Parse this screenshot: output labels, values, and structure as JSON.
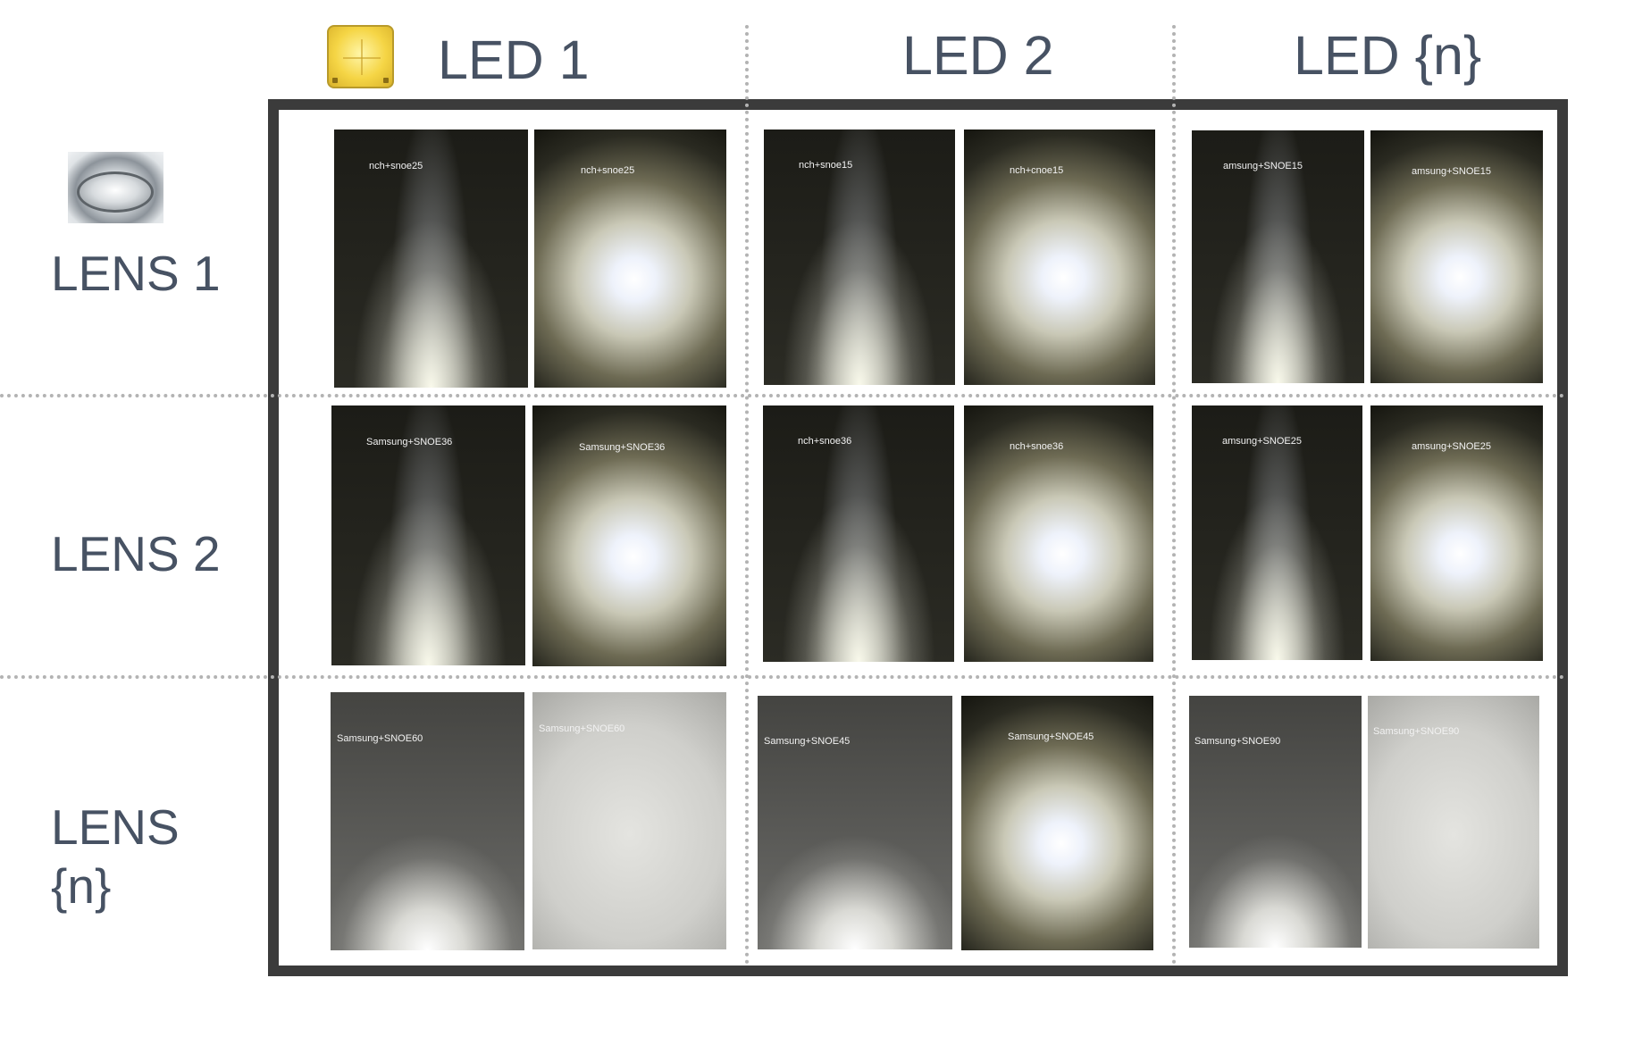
{
  "columns": [
    {
      "label": "LED 1",
      "icon": "led-chip-icon"
    },
    {
      "label": "LED 2"
    },
    {
      "label": "LED {n}"
    }
  ],
  "rows": [
    {
      "label": "LENS 1",
      "icon": "lens-icon"
    },
    {
      "label": "LENS 2"
    },
    {
      "label": "LENS {n}"
    }
  ],
  "cells": [
    [
      {
        "photos": [
          {
            "label": "nch+snoe25",
            "kind": "cone"
          },
          {
            "label": "nch+snoe25",
            "kind": "spot"
          }
        ]
      },
      {
        "photos": [
          {
            "label": "nch+snoe15",
            "kind": "cone"
          },
          {
            "label": "nch+cnoe15",
            "kind": "spot"
          }
        ]
      },
      {
        "photos": [
          {
            "label": "amsung+SNOE15",
            "kind": "cone"
          },
          {
            "label": "amsung+SNOE15",
            "kind": "spot"
          }
        ]
      }
    ],
    [
      {
        "photos": [
          {
            "label": "Samsung+SNOE36",
            "kind": "cone"
          },
          {
            "label": "Samsung+SNOE36",
            "kind": "spot"
          }
        ]
      },
      {
        "photos": [
          {
            "label": "nch+snoe36",
            "kind": "cone"
          },
          {
            "label": "nch+snoe36",
            "kind": "spot"
          }
        ]
      },
      {
        "photos": [
          {
            "label": "amsung+SNOE25",
            "kind": "cone"
          },
          {
            "label": "amsung+SNOE25",
            "kind": "spot"
          }
        ]
      }
    ],
    [
      {
        "photos": [
          {
            "label": "Samsung+SNOE60",
            "kind": "wide"
          },
          {
            "label": "Samsung+SNOE60",
            "kind": "flat"
          }
        ]
      },
      {
        "photos": [
          {
            "label": "Samsung+SNOE45",
            "kind": "wide"
          },
          {
            "label": "Samsung+SNOE45",
            "kind": "spot"
          }
        ]
      },
      {
        "photos": [
          {
            "label": "Samsung+SNOE90",
            "kind": "wide"
          },
          {
            "label": "Samsung+SNOE90",
            "kind": "flat"
          }
        ]
      }
    ]
  ],
  "colors": {
    "heading": "#475263",
    "frame": "#3b3b3b",
    "divider": "#b3b3b3",
    "photo_label": "#f2f2f2"
  }
}
